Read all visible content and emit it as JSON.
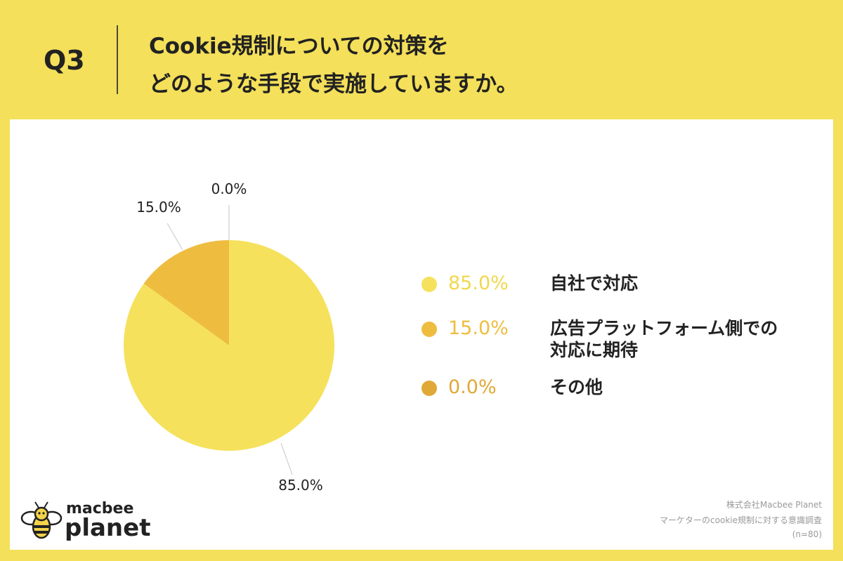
{
  "header": {
    "question_number": "Q3",
    "title_line1": "Cookie規制についての対策を",
    "title_line2": "どのような手段で実施していますか。"
  },
  "chart_data": {
    "type": "pie",
    "categories": [
      "自社で対応",
      "広告プラットフォーム側での対応に期待",
      "その他"
    ],
    "values": [
      85.0,
      15.0,
      0.0
    ],
    "value_labels": [
      "85.0%",
      "15.0%",
      "0.0%"
    ],
    "colors": [
      "#f5e15c",
      "#eebd40",
      "#e0a836"
    ]
  },
  "legend": {
    "items": [
      {
        "percent": "85.0%",
        "label_lines": [
          "自社で対応"
        ],
        "color": "#f5e15c",
        "text_color": "#f0d84e"
      },
      {
        "percent": "15.0%",
        "label_lines": [
          "広告プラットフォーム側での",
          "対応に期待"
        ],
        "color": "#eebd40",
        "text_color": "#eebd40"
      },
      {
        "percent": "0.0%",
        "label_lines": [
          "その他"
        ],
        "color": "#e0a836",
        "text_color": "#e0a836"
      }
    ]
  },
  "logo": {
    "line1": "macbee",
    "line2": "planet"
  },
  "source": {
    "line1": "株式会社Macbee Planet",
    "line2": "マーケターのcookie規制に対する意識調査",
    "line3": "(n=80)"
  }
}
